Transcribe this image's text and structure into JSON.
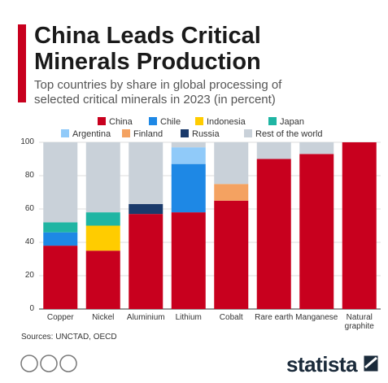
{
  "chart_data": {
    "type": "stacked-bar",
    "title": "China Leads Critical Minerals Production",
    "subtitle": "Top countries by share in global processing of selected critical minerals in 2023 (in percent)",
    "source": "Sources: UNCTAD, OECD",
    "brand": "statista",
    "categories": [
      "Copper",
      "Nickel",
      "Aluminium",
      "Lithium",
      "Cobalt",
      "Rare earth",
      "Manganese",
      "Natural graphite"
    ],
    "series": [
      {
        "name": "China",
        "color": "#c8001e",
        "values": [
          38,
          35,
          57,
          58,
          65,
          90,
          93,
          100
        ]
      },
      {
        "name": "Chile",
        "color": "#1e88e5",
        "values": [
          8,
          0,
          0,
          29,
          0,
          0,
          0,
          0
        ]
      },
      {
        "name": "Indonesia",
        "color": "#ffcc00",
        "values": [
          0,
          15,
          0,
          0,
          0,
          0,
          0,
          0
        ]
      },
      {
        "name": "Japan",
        "color": "#1fb5a3",
        "values": [
          6,
          8,
          0,
          0,
          0,
          0,
          0,
          0
        ]
      },
      {
        "name": "Argentina",
        "color": "#90caf9",
        "values": [
          0,
          0,
          0,
          10,
          0,
          0,
          0,
          0
        ]
      },
      {
        "name": "Finland",
        "color": "#f4a261",
        "values": [
          0,
          0,
          0,
          0,
          10,
          0,
          0,
          0
        ]
      },
      {
        "name": "Russia",
        "color": "#1a3a6b",
        "values": [
          0,
          0,
          6,
          0,
          0,
          0,
          0,
          0
        ]
      },
      {
        "name": "Rest of the world",
        "color": "#c9d1d9",
        "values": [
          48,
          42,
          37,
          3,
          25,
          10,
          7,
          0
        ]
      }
    ],
    "ylim": [
      0,
      100
    ],
    "yticks": [
      0,
      20,
      40,
      60,
      80,
      100
    ],
    "grid": true
  }
}
